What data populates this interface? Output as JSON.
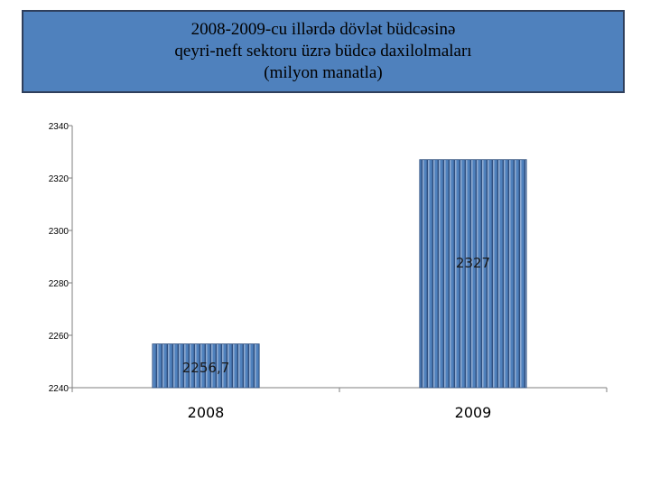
{
  "chart_data": {
    "type": "bar",
    "title_lines": [
      "2008-2009-cu illərdə dövlət büdcəsinə",
      "qeyri-neft sektoru üzrə  büdcə daxilolmaları",
      "(milyon manatla)"
    ],
    "categories": [
      "2008",
      "2009"
    ],
    "values": [
      2256.7,
      2327
    ],
    "data_labels": [
      "2256,7",
      "2327"
    ],
    "ylim": [
      2240,
      2340
    ],
    "yticks": [
      2240,
      2260,
      2280,
      2300,
      2320,
      2340
    ],
    "ytick_labels": [
      "2240",
      "2260",
      "2280",
      "2300",
      "2320",
      "2340"
    ],
    "grid": false,
    "bar_color": "#4f81bd",
    "title_bg": "#4f81bd"
  }
}
